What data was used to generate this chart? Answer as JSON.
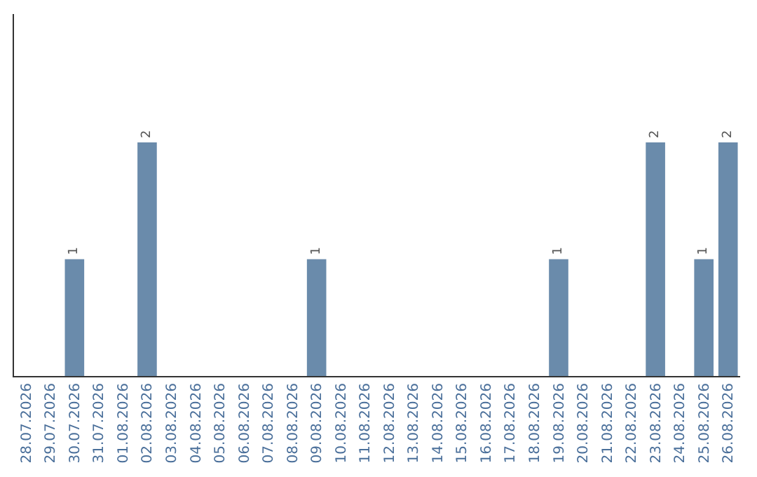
{
  "chart_data": {
    "type": "bar",
    "categories": [
      "28.07.2026",
      "29.07.2026",
      "30.07.2026",
      "31.07.2026",
      "01.08.2026",
      "02.08.2026",
      "03.08.2026",
      "04.08.2026",
      "05.08.2026",
      "06.08.2026",
      "07.08.2026",
      "08.08.2026",
      "09.08.2026",
      "10.08.2026",
      "11.08.2026",
      "12.08.2026",
      "13.08.2026",
      "14.08.2026",
      "15.08.2026",
      "16.08.2026",
      "17.08.2026",
      "18.08.2026",
      "19.08.2026",
      "20.08.2026",
      "21.08.2026",
      "22.08.2026",
      "23.08.2026",
      "24.08.2026",
      "25.08.2026",
      "26.08.2026"
    ],
    "values": [
      0,
      0,
      1,
      0,
      0,
      2,
      0,
      0,
      0,
      0,
      0,
      0,
      1,
      0,
      0,
      0,
      0,
      0,
      0,
      0,
      0,
      0,
      1,
      0,
      0,
      0,
      2,
      0,
      1,
      2
    ],
    "value_labels": [
      null,
      null,
      "1",
      null,
      null,
      "2",
      null,
      null,
      null,
      null,
      null,
      null,
      "1",
      null,
      null,
      null,
      null,
      null,
      null,
      null,
      null,
      null,
      "1",
      null,
      null,
      null,
      "2",
      null,
      "1",
      "2"
    ],
    "color": "#6a8bab",
    "ylim": [
      0,
      3.1
    ],
    "tick_labels": "x",
    "legend": false
  }
}
